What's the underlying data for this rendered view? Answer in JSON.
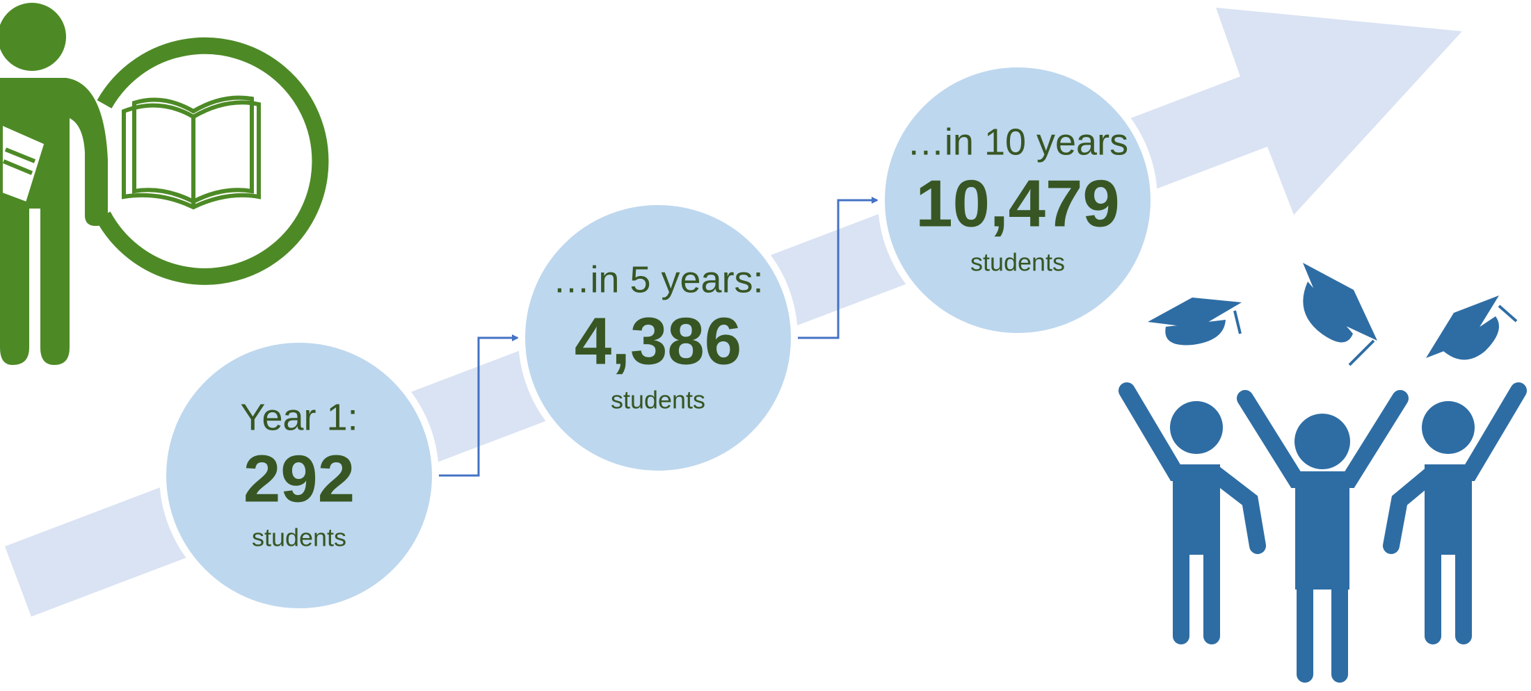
{
  "steps": [
    {
      "label": "Year 1:",
      "count": "292",
      "unit": "students"
    },
    {
      "label": "…in 5 years:",
      "count": "4,386",
      "unit": "students"
    },
    {
      "label": "…in 10 years",
      "count": "10,479",
      "unit": "students"
    }
  ]
}
